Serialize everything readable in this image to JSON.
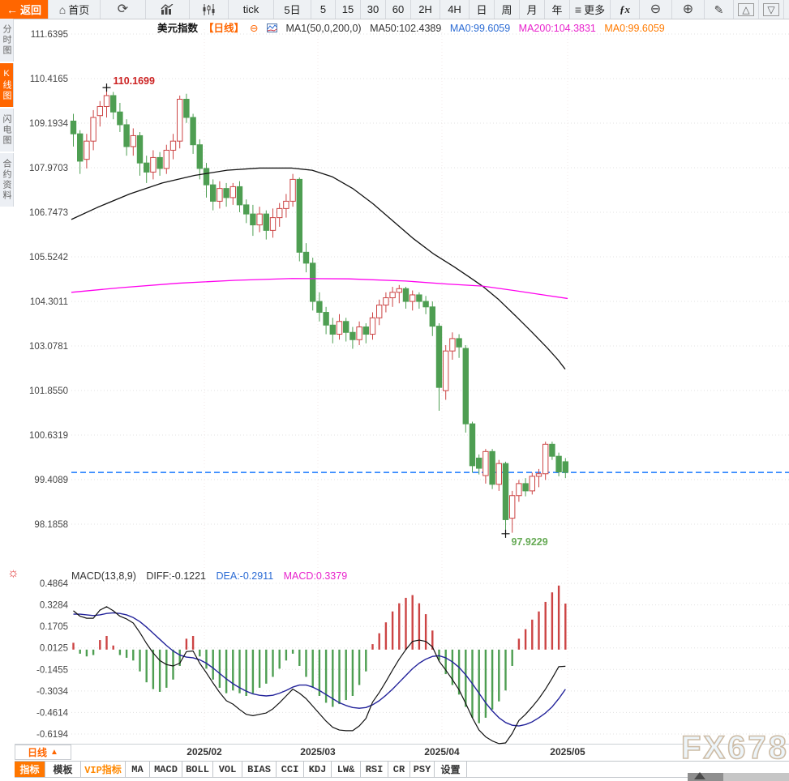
{
  "toolbar": {
    "items": [
      {
        "name": "back-button",
        "label": "返回",
        "icon": "back",
        "w": 60,
        "active": true
      },
      {
        "name": "home-button",
        "label": "首页",
        "icon": "home",
        "w": 64
      },
      {
        "name": "refresh-button",
        "label": "",
        "icon": "refresh",
        "w": 56
      },
      {
        "name": "bar-chart-button",
        "label": "",
        "icon": "chart-bar",
        "w": 54
      },
      {
        "name": "candle-chart-button",
        "label": "",
        "icon": "chart-candle",
        "w": 48
      },
      {
        "name": "interval-tick",
        "label": "tick",
        "w": 56
      },
      {
        "name": "interval-5d",
        "label": "5日",
        "w": 46
      },
      {
        "name": "interval-5m",
        "label": "5",
        "w": 30
      },
      {
        "name": "interval-15m",
        "label": "15",
        "w": 31
      },
      {
        "name": "interval-30m",
        "label": "30",
        "w": 31
      },
      {
        "name": "interval-60m",
        "label": "60",
        "w": 31
      },
      {
        "name": "interval-2h",
        "label": "2H",
        "w": 36
      },
      {
        "name": "interval-4h",
        "label": "4H",
        "w": 36
      },
      {
        "name": "interval-day",
        "label": "日",
        "w": 31
      },
      {
        "name": "interval-week",
        "label": "周",
        "w": 31
      },
      {
        "name": "interval-month",
        "label": "月",
        "w": 31
      },
      {
        "name": "interval-year",
        "label": "年",
        "w": 31
      },
      {
        "name": "more-button",
        "label": "更多",
        "icon": "more",
        "w": 50
      },
      {
        "name": "indicator-fx-button",
        "label": "",
        "icon": "fx",
        "w": 36
      },
      {
        "name": "zoom-out-button",
        "label": "",
        "icon": "zoom-out",
        "w": 40
      },
      {
        "name": "zoom-in-button",
        "label": "",
        "icon": "zoom-in",
        "w": 40
      },
      {
        "name": "draw-button",
        "label": "",
        "icon": "pencil",
        "w": 36
      },
      {
        "name": "scroll-up-button",
        "label": "",
        "icon": "tri-up",
        "w": 31
      },
      {
        "name": "scroll-down-button",
        "label": "",
        "icon": "tri-down",
        "w": 31
      }
    ]
  },
  "sidebar": {
    "items": [
      {
        "name": "sidebar-item-time-chart",
        "label": "分时图",
        "active": false
      },
      {
        "name": "sidebar-item-kline-chart",
        "label": "K线图",
        "active": true
      },
      {
        "name": "sidebar-item-lightning-chart",
        "label": "闪电图",
        "active": false
      },
      {
        "name": "sidebar-item-contract-info",
        "label": "合约资料",
        "active": false
      }
    ]
  },
  "chart_header": {
    "symbol": "美元指数",
    "period_tag": "【日线】",
    "minus_icon": "⊖",
    "ma_formula": "MA1(50,0,200,0)",
    "ma50": "MA50:102.4389",
    "ma0_blue": "MA0:99.6059",
    "ma200": "MA200:104.3831",
    "ma0_orange": "MA0:99.6059"
  },
  "macd_header": {
    "formula": "MACD(13,8,9)",
    "diff": "DIFF:-0.1221",
    "dea": "DEA:-0.2911",
    "macd": "MACD:0.3379"
  },
  "xaxis": {
    "period_label": "日线",
    "period_arrow": "▲"
  },
  "watermark": {
    "text": "FX678"
  },
  "tabbar": {
    "tabs": [
      {
        "label": "指标",
        "w": 38,
        "state": "active"
      },
      {
        "label": "模板",
        "w": 44,
        "state": ""
      },
      {
        "label": "VIP指标",
        "w": 55,
        "state": "vip"
      },
      {
        "label": "MA",
        "w": 30,
        "state": ""
      },
      {
        "label": "MACD",
        "w": 40,
        "state": ""
      },
      {
        "label": "BOLL",
        "w": 38,
        "state": ""
      },
      {
        "label": "VOL",
        "w": 36,
        "state": ""
      },
      {
        "label": "BIAS",
        "w": 42,
        "state": ""
      },
      {
        "label": "CCI",
        "w": 34,
        "state": ""
      },
      {
        "label": "KDJ",
        "w": 34,
        "state": ""
      },
      {
        "label": "LW&",
        "w": 36,
        "state": ""
      },
      {
        "label": "RSI",
        "w": 34,
        "state": ""
      },
      {
        "label": "CR",
        "w": 27,
        "state": ""
      },
      {
        "label": "PSY",
        "w": 30,
        "state": ""
      },
      {
        "label": "设置",
        "w": 40,
        "state": ""
      }
    ]
  },
  "colors": {
    "accent_orange": "#ff6600",
    "candle_up": "#cc4444",
    "candle_down": "#4e9e52",
    "ma50_line": "#111111",
    "ma200_line": "#ff00ee",
    "dea_line": "#22229a",
    "diff_line": "#111111",
    "current_price_line": "#1677ff",
    "grid": "#e3e3e3",
    "high_label": "#cc2222",
    "low_label": "#66aa55"
  },
  "chart_data": {
    "type": "candlestick",
    "symbol": "美元指数",
    "period": "日线",
    "price_axis": {
      "ticks": [
        "111.6395",
        "110.4165",
        "109.1934",
        "107.9703",
        "106.7473",
        "105.5242",
        "104.3011",
        "103.0781",
        "101.8550",
        "100.6319",
        "99.4089",
        "98.1858"
      ],
      "min": 98.1858,
      "max": 111.6395
    },
    "current_price": 99.6059,
    "annotations": {
      "high": {
        "index": 5,
        "value": 110.1699,
        "label": "110.1699"
      },
      "low": {
        "index": 65,
        "value": 97.9229,
        "label": "97.9229"
      }
    },
    "x_axis": {
      "labels": [
        "2025/02",
        "2025/03",
        "2025/04",
        "2025/05"
      ],
      "gridlines_x": [
        252,
        392,
        545,
        700
      ]
    },
    "candles": [
      [
        109.25,
        109.45,
        108.55,
        108.9
      ],
      [
        108.9,
        109.0,
        107.8,
        108.15
      ],
      [
        108.2,
        108.9,
        107.95,
        108.7
      ],
      [
        108.7,
        109.55,
        108.45,
        109.35
      ],
      [
        109.4,
        109.8,
        109.1,
        109.65
      ],
      [
        109.65,
        110.1699,
        109.35,
        109.95
      ],
      [
        109.95,
        110.05,
        109.3,
        109.5
      ],
      [
        109.5,
        109.75,
        108.95,
        109.15
      ],
      [
        109.15,
        109.3,
        108.3,
        108.55
      ],
      [
        108.55,
        109.05,
        108.3,
        108.85
      ],
      [
        108.85,
        108.95,
        107.75,
        108.1
      ],
      [
        108.1,
        108.3,
        107.55,
        107.85
      ],
      [
        107.85,
        108.45,
        107.65,
        108.25
      ],
      [
        108.25,
        108.4,
        107.75,
        107.95
      ],
      [
        107.95,
        108.6,
        107.8,
        108.45
      ],
      [
        108.45,
        108.9,
        108.2,
        108.7
      ],
      [
        108.7,
        109.95,
        108.5,
        109.85
      ],
      [
        109.85,
        110.0,
        109.2,
        109.35
      ],
      [
        109.35,
        109.45,
        108.35,
        108.6
      ],
      [
        108.6,
        108.75,
        107.65,
        107.95
      ],
      [
        107.95,
        108.1,
        107.15,
        107.5
      ],
      [
        107.5,
        107.65,
        106.8,
        107.05
      ],
      [
        107.05,
        107.6,
        106.85,
        107.4
      ],
      [
        107.4,
        107.55,
        106.9,
        107.15
      ],
      [
        107.15,
        107.55,
        106.95,
        107.45
      ],
      [
        107.45,
        107.6,
        106.75,
        106.95
      ],
      [
        106.95,
        107.1,
        106.45,
        106.7
      ],
      [
        106.7,
        106.95,
        106.1,
        106.4
      ],
      [
        106.4,
        106.9,
        106.2,
        106.7
      ],
      [
        106.7,
        106.8,
        106.0,
        106.25
      ],
      [
        106.25,
        106.85,
        106.05,
        106.6
      ],
      [
        106.6,
        107.0,
        106.35,
        106.85
      ],
      [
        106.85,
        107.25,
        106.6,
        107.05
      ],
      [
        107.05,
        107.8,
        106.9,
        107.65
      ],
      [
        107.65,
        107.7,
        105.4,
        105.65
      ],
      [
        105.65,
        105.9,
        105.1,
        105.35
      ],
      [
        105.35,
        105.5,
        104.05,
        104.3
      ],
      [
        104.3,
        104.55,
        103.75,
        104.0
      ],
      [
        104.0,
        104.15,
        103.4,
        103.65
      ],
      [
        103.65,
        103.85,
        103.15,
        103.4
      ],
      [
        103.4,
        103.95,
        103.25,
        103.75
      ],
      [
        103.75,
        103.85,
        103.2,
        103.45
      ],
      [
        103.45,
        103.6,
        103.0,
        103.25
      ],
      [
        103.25,
        103.75,
        103.1,
        103.6
      ],
      [
        103.6,
        103.7,
        103.15,
        103.4
      ],
      [
        103.4,
        104.0,
        103.25,
        103.85
      ],
      [
        103.85,
        104.35,
        103.65,
        104.2
      ],
      [
        104.2,
        104.55,
        104.0,
        104.4
      ],
      [
        104.4,
        104.7,
        104.15,
        104.55
      ],
      [
        104.55,
        104.75,
        104.25,
        104.65
      ],
      [
        104.65,
        104.7,
        104.1,
        104.3
      ],
      [
        104.3,
        104.6,
        104.05,
        104.48
      ],
      [
        104.48,
        104.55,
        104.1,
        104.3
      ],
      [
        104.3,
        104.45,
        103.95,
        104.15
      ],
      [
        104.15,
        104.3,
        103.35,
        103.62
      ],
      [
        103.62,
        103.7,
        101.3,
        101.94
      ],
      [
        101.85,
        103.1,
        101.6,
        102.94
      ],
      [
        102.94,
        103.45,
        102.7,
        103.28
      ],
      [
        103.28,
        103.4,
        102.75,
        103.05
      ],
      [
        103.01,
        103.1,
        100.7,
        100.94
      ],
      [
        100.94,
        101.0,
        99.6,
        99.79
      ],
      [
        100.0,
        100.1,
        99.55,
        99.72
      ],
      [
        99.52,
        100.25,
        99.3,
        100.18
      ],
      [
        100.18,
        100.25,
        99.15,
        99.28
      ],
      [
        99.28,
        99.95,
        99.1,
        99.85
      ],
      [
        99.85,
        99.9,
        97.9229,
        98.31
      ],
      [
        98.35,
        99.1,
        97.95,
        98.97
      ],
      [
        98.97,
        99.4,
        98.8,
        99.3
      ],
      [
        99.3,
        99.45,
        98.95,
        99.1
      ],
      [
        99.1,
        99.6,
        99.0,
        99.5
      ],
      [
        99.5,
        99.7,
        99.2,
        99.57
      ],
      [
        99.57,
        100.45,
        99.4,
        100.38
      ],
      [
        100.38,
        100.45,
        99.95,
        100.05
      ],
      [
        100.05,
        100.15,
        99.5,
        99.62
      ],
      [
        99.9,
        100.0,
        99.45,
        99.6059
      ]
    ],
    "ma50": {
      "points": [
        [
          88,
          106.55
        ],
        [
          120,
          106.88
        ],
        [
          160,
          107.25
        ],
        [
          200,
          107.55
        ],
        [
          240,
          107.76
        ],
        [
          280,
          107.9
        ],
        [
          320,
          107.96
        ],
        [
          360,
          107.96
        ],
        [
          385,
          107.9
        ],
        [
          410,
          107.72
        ],
        [
          435,
          107.4
        ],
        [
          460,
          106.98
        ],
        [
          485,
          106.5
        ],
        [
          510,
          106.02
        ],
        [
          535,
          105.6
        ],
        [
          560,
          105.25
        ],
        [
          580,
          104.95
        ],
        [
          595,
          104.72
        ],
        [
          615,
          104.35
        ],
        [
          635,
          103.92
        ],
        [
          655,
          103.48
        ],
        [
          675,
          103.02
        ],
        [
          688,
          102.7
        ],
        [
          697,
          102.44
        ]
      ]
    },
    "ma200": {
      "points": [
        [
          88,
          104.55
        ],
        [
          150,
          104.68
        ],
        [
          220,
          104.8
        ],
        [
          290,
          104.88
        ],
        [
          360,
          104.93
        ],
        [
          430,
          104.92
        ],
        [
          500,
          104.86
        ],
        [
          550,
          104.78
        ],
        [
          595,
          104.72
        ],
        [
          640,
          104.58
        ],
        [
          670,
          104.48
        ],
        [
          700,
          104.38
        ]
      ]
    },
    "macd": {
      "axis_ticks": [
        "0.4864",
        "0.3284",
        "0.1705",
        "0.0125",
        "-0.1455",
        "-0.3034",
        "-0.4614",
        "-0.6194"
      ],
      "hist": [
        0.05,
        -0.03,
        -0.05,
        -0.04,
        0.07,
        0.1,
        0.03,
        -0.04,
        -0.06,
        -0.08,
        -0.16,
        -0.24,
        -0.29,
        -0.31,
        -0.28,
        -0.22,
        -0.12,
        0.08,
        0.1,
        -0.05,
        -0.14,
        -0.22,
        -0.28,
        -0.32,
        -0.3,
        -0.32,
        -0.34,
        -0.32,
        -0.28,
        -0.25,
        -0.2,
        -0.14,
        -0.08,
        -0.03,
        -0.12,
        -0.2,
        -0.28,
        -0.34,
        -0.39,
        -0.42,
        -0.4,
        -0.37,
        -0.34,
        -0.26,
        -0.16,
        0.04,
        0.12,
        0.2,
        0.28,
        0.34,
        0.38,
        0.4,
        0.34,
        0.26,
        0.14,
        -0.08,
        -0.18,
        -0.26,
        -0.33,
        -0.42,
        -0.5,
        -0.54,
        -0.5,
        -0.44,
        -0.38,
        -0.3,
        -0.12,
        0.08,
        0.15,
        0.22,
        0.28,
        0.35,
        0.42,
        0.47,
        0.3379
      ],
      "dea": [
        0.26,
        0.26,
        0.255,
        0.25,
        0.255,
        0.265,
        0.27,
        0.265,
        0.255,
        0.235,
        0.205,
        0.165,
        0.12,
        0.075,
        0.03,
        -0.01,
        -0.04,
        -0.055,
        -0.06,
        -0.075,
        -0.1,
        -0.135,
        -0.175,
        -0.215,
        -0.25,
        -0.28,
        -0.305,
        -0.325,
        -0.335,
        -0.34,
        -0.335,
        -0.32,
        -0.3,
        -0.275,
        -0.26,
        -0.26,
        -0.275,
        -0.3,
        -0.33,
        -0.36,
        -0.39,
        -0.41,
        -0.425,
        -0.43,
        -0.425,
        -0.405,
        -0.375,
        -0.335,
        -0.29,
        -0.24,
        -0.19,
        -0.14,
        -0.1,
        -0.07,
        -0.05,
        -0.045,
        -0.06,
        -0.09,
        -0.13,
        -0.185,
        -0.25,
        -0.32,
        -0.39,
        -0.45,
        -0.5,
        -0.535,
        -0.555,
        -0.56,
        -0.55,
        -0.53,
        -0.5,
        -0.465,
        -0.42,
        -0.36,
        -0.2911
      ]
    }
  }
}
